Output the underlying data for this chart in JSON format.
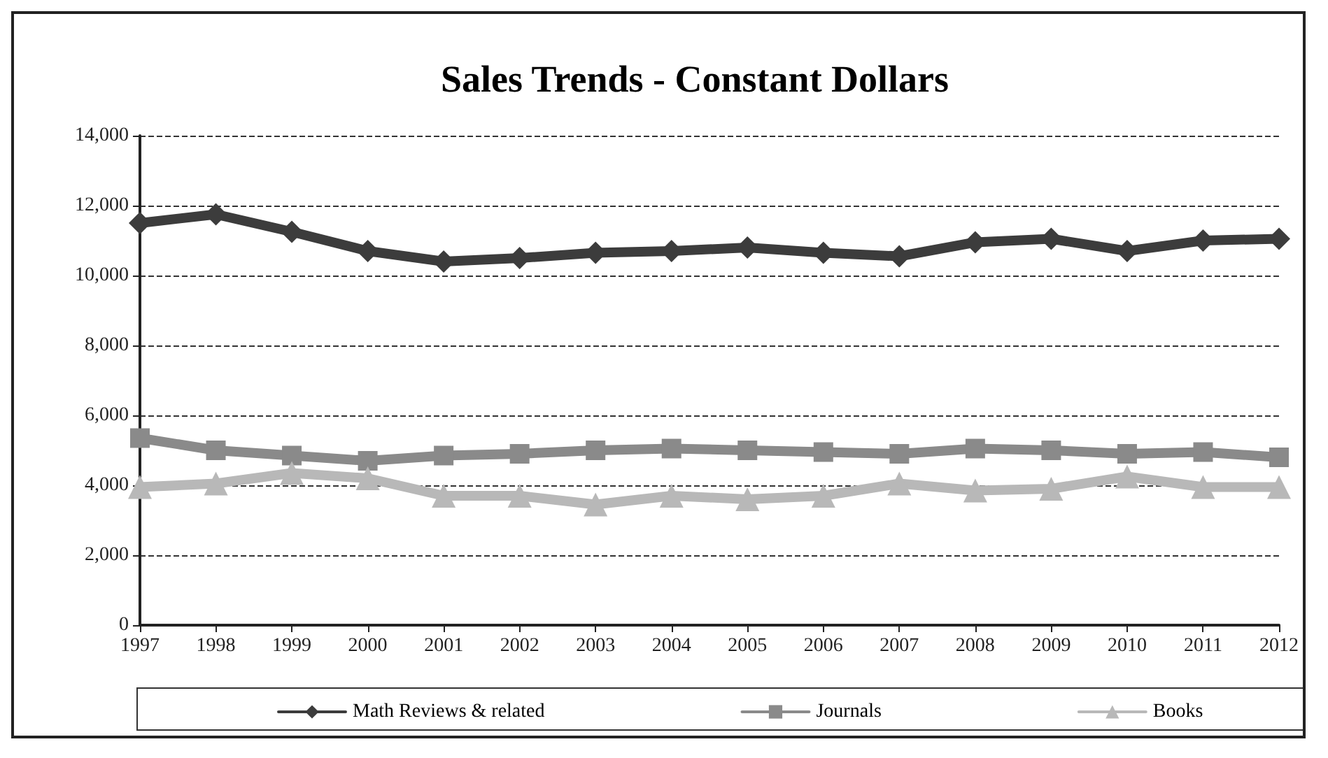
{
  "chart_data": {
    "type": "line",
    "title": "Sales Trends - Constant Dollars",
    "categories": [
      "1997",
      "1998",
      "1999",
      "2000",
      "2001",
      "2002",
      "2003",
      "2004",
      "2005",
      "2006",
      "2007",
      "2008",
      "2009",
      "2010",
      "2011",
      "2012"
    ],
    "series": [
      {
        "name": "Math Reviews & related",
        "color": "#3c3c3c",
        "marker": "diamond",
        "values": [
          11500,
          11750,
          11250,
          10700,
          10400,
          10500,
          10650,
          10700,
          10800,
          10650,
          10550,
          10950,
          11050,
          10700,
          11000,
          11050
        ]
      },
      {
        "name": "Journals",
        "color": "#8a8a8a",
        "marker": "square",
        "values": [
          5350,
          5000,
          4850,
          4700,
          4850,
          4900,
          5000,
          5050,
          5000,
          4950,
          4900,
          5050,
          5000,
          4900,
          4950,
          4800
        ]
      },
      {
        "name": "Books",
        "color": "#b8b8b8",
        "marker": "triangle",
        "values": [
          3950,
          4050,
          4350,
          4200,
          3700,
          3700,
          3450,
          3700,
          3600,
          3700,
          4050,
          3850,
          3900,
          4250,
          3950,
          3950
        ]
      }
    ],
    "ylim": [
      0,
      14000
    ],
    "yticks": [
      0,
      {
        "value": 2000,
        "label": "2,000"
      },
      {
        "value": 4000,
        "label": "4,000"
      },
      {
        "value": 6000,
        "label": "6,000"
      },
      {
        "value": 8000,
        "label": "8,000"
      },
      {
        "value": 10000,
        "label": "10,000"
      },
      {
        "value": 12000,
        "label": "12,000"
      },
      {
        "value": 14000,
        "label": "14,000"
      }
    ],
    "grid": "y",
    "legend": "bottom",
    "line_style": "solid"
  }
}
